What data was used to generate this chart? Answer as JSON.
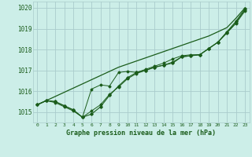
{
  "title": "Graphe pression niveau de la mer (hPa)",
  "bg_color": "#cceee8",
  "grid_color": "#aacccc",
  "line_color": "#1a5c1a",
  "xlim": [
    -0.5,
    23.5
  ],
  "ylim": [
    1014.5,
    1020.3
  ],
  "yticks": [
    1015,
    1016,
    1017,
    1018,
    1019,
    1020
  ],
  "xticks": [
    0,
    1,
    2,
    3,
    4,
    5,
    6,
    7,
    8,
    9,
    10,
    11,
    12,
    13,
    14,
    15,
    16,
    17,
    18,
    19,
    20,
    21,
    22,
    23
  ],
  "series_smooth": [
    1015.35,
    1015.55,
    1015.75,
    1015.95,
    1016.15,
    1016.35,
    1016.55,
    1016.75,
    1016.95,
    1017.15,
    1017.3,
    1017.45,
    1017.6,
    1017.75,
    1017.9,
    1018.05,
    1018.2,
    1018.35,
    1018.5,
    1018.65,
    1018.85,
    1019.05,
    1019.5,
    1020.0
  ],
  "series1": [
    1015.35,
    1015.55,
    1015.5,
    1015.3,
    1015.1,
    1014.75,
    1014.9,
    1015.25,
    1015.8,
    1016.25,
    1016.65,
    1016.9,
    1017.0,
    1017.15,
    1017.25,
    1017.35,
    1017.65,
    1017.7,
    1017.75,
    1018.05,
    1018.35,
    1018.85,
    1019.35,
    1019.95
  ],
  "series2": [
    1015.35,
    1015.55,
    1015.45,
    1015.25,
    1015.05,
    1014.75,
    1015.05,
    1015.35,
    1015.85,
    1016.2,
    1016.6,
    1016.85,
    1017.0,
    1017.15,
    1017.25,
    1017.4,
    1017.65,
    1017.7,
    1017.75,
    1018.05,
    1018.35,
    1018.8,
    1019.3,
    1019.9
  ],
  "series3": [
    1015.35,
    1015.55,
    1015.5,
    1015.3,
    1015.1,
    1014.75,
    1016.1,
    1016.3,
    1016.25,
    1016.9,
    1016.95,
    1016.9,
    1017.05,
    1017.2,
    1017.35,
    1017.55,
    1017.7,
    1017.75,
    1017.75,
    1018.05,
    1018.35,
    1018.8,
    1019.25,
    1019.85
  ]
}
